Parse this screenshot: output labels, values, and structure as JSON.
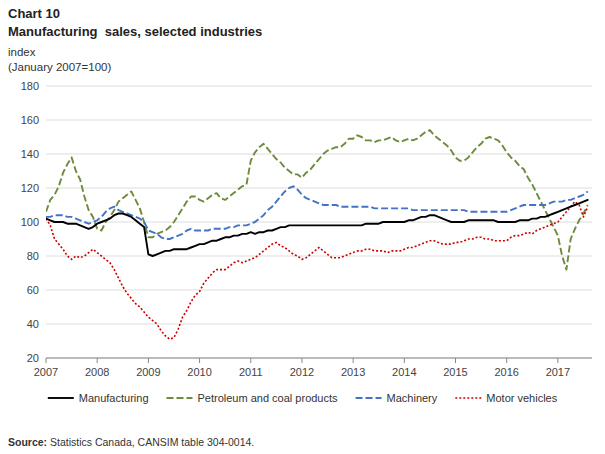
{
  "chart_data": {
    "type": "line",
    "title": "Chart 10",
    "subtitle": "Manufacturing  sales, selected industries",
    "y_label": [
      "index",
      "(January 2007=100)"
    ],
    "annotations": [
      "Source: Statistics Canada, CANSIM table 304-0014."
    ],
    "categories": [
      "2007",
      null,
      null,
      null,
      null,
      null,
      null,
      null,
      null,
      null,
      null,
      null,
      "2008",
      null,
      null,
      null,
      null,
      null,
      null,
      null,
      null,
      null,
      null,
      null,
      "2009",
      null,
      null,
      null,
      null,
      null,
      null,
      null,
      null,
      null,
      null,
      null,
      "2010",
      null,
      null,
      null,
      null,
      null,
      null,
      null,
      null,
      null,
      null,
      null,
      "2011",
      null,
      null,
      null,
      null,
      null,
      null,
      null,
      null,
      null,
      null,
      null,
      "2012",
      null,
      null,
      null,
      null,
      null,
      null,
      null,
      null,
      null,
      null,
      null,
      "2013",
      null,
      null,
      null,
      null,
      null,
      null,
      null,
      null,
      null,
      null,
      null,
      "2014",
      null,
      null,
      null,
      null,
      null,
      null,
      null,
      null,
      null,
      null,
      null,
      "2015",
      null,
      null,
      null,
      null,
      null,
      null,
      null,
      null,
      null,
      null,
      null,
      "2016",
      null,
      null,
      null,
      null,
      null,
      null,
      null,
      null,
      null,
      null,
      null,
      "2017",
      null,
      null,
      null,
      null,
      null,
      null,
      null
    ],
    "series": [
      {
        "name": "Manufacturing",
        "color": "#000000",
        "line_style": "solid",
        "values": [
          102,
          101,
          100,
          100,
          100,
          99,
          99,
          99,
          98,
          97,
          96,
          97,
          99,
          100,
          101,
          102,
          104,
          105,
          105,
          104,
          103,
          101,
          99,
          97,
          81,
          80,
          81,
          82,
          83,
          83,
          84,
          84,
          84,
          84,
          85,
          86,
          87,
          87,
          88,
          89,
          89,
          90,
          91,
          91,
          92,
          92,
          93,
          93,
          94,
          93,
          94,
          94,
          95,
          95,
          96,
          97,
          97,
          98,
          98,
          98,
          98,
          98,
          98,
          98,
          98,
          98,
          98,
          98,
          98,
          98,
          98,
          98,
          98,
          98,
          98,
          99,
          99,
          99,
          99,
          100,
          100,
          100,
          100,
          100,
          100,
          101,
          101,
          102,
          103,
          103,
          104,
          104,
          103,
          102,
          101,
          100,
          100,
          100,
          100,
          101,
          101,
          101,
          101,
          101,
          101,
          101,
          100,
          100,
          100,
          100,
          100,
          101,
          101,
          101,
          102,
          102,
          103,
          103,
          104,
          105,
          106,
          107,
          108,
          109,
          110,
          111,
          112,
          113
        ]
      },
      {
        "name": "Petroleum and coal products",
        "color": "#6e8b3d",
        "line_style": "dashed",
        "values": [
          106,
          113,
          116,
          121,
          129,
          134,
          138,
          130,
          125,
          115,
          107,
          103,
          96,
          95,
          100,
          103,
          107,
          112,
          114,
          116,
          118,
          113,
          108,
          100,
          91,
          91,
          93,
          94,
          95,
          97,
          100,
          104,
          108,
          112,
          115,
          115,
          113,
          112,
          114,
          116,
          117,
          114,
          113,
          115,
          117,
          119,
          121,
          122,
          136,
          141,
          144,
          146,
          143,
          140,
          137,
          135,
          132,
          130,
          128,
          128,
          126,
          129,
          131,
          134,
          137,
          140,
          142,
          143,
          144,
          144,
          146,
          149,
          149,
          151,
          150,
          148,
          148,
          147,
          148,
          148,
          149,
          150,
          148,
          147,
          148,
          149,
          148,
          149,
          151,
          153,
          154,
          151,
          149,
          147,
          145,
          142,
          138,
          136,
          136,
          138,
          141,
          144,
          146,
          149,
          150,
          149,
          148,
          145,
          141,
          138,
          136,
          133,
          131,
          126,
          122,
          117,
          112,
          107,
          102,
          97,
          92,
          80,
          72,
          90,
          96,
          101,
          105,
          110
        ]
      },
      {
        "name": "Machinery",
        "color": "#4472c4",
        "line_style": "dashed",
        "values": [
          103,
          103,
          104,
          104,
          104,
          103,
          103,
          102,
          101,
          100,
          99,
          100,
          101,
          103,
          106,
          108,
          109,
          107,
          106,
          105,
          104,
          103,
          102,
          100,
          95,
          94,
          93,
          91,
          90,
          90,
          91,
          92,
          93,
          95,
          96,
          95,
          95,
          95,
          95,
          96,
          96,
          96,
          96,
          97,
          97,
          98,
          98,
          98,
          99,
          100,
          102,
          104,
          107,
          109,
          112,
          115,
          118,
          120,
          121,
          119,
          116,
          114,
          113,
          112,
          111,
          110,
          110,
          110,
          110,
          109,
          109,
          109,
          109,
          109,
          109,
          109,
          109,
          108,
          108,
          108,
          108,
          108,
          108,
          108,
          108,
          108,
          107,
          107,
          107,
          107,
          107,
          107,
          107,
          107,
          107,
          107,
          107,
          107,
          107,
          106,
          106,
          106,
          106,
          106,
          106,
          106,
          106,
          106,
          106,
          107,
          108,
          109,
          110,
          110,
          110,
          110,
          110,
          110,
          111,
          112,
          112,
          112,
          113,
          113,
          114,
          115,
          116,
          118
        ]
      },
      {
        "name": "Motor vehicles",
        "color": "#cc0000",
        "line_style": "dotted",
        "values": [
          102,
          98,
          90,
          87,
          84,
          80,
          78,
          80,
          79,
          80,
          82,
          84,
          82,
          80,
          78,
          76,
          72,
          67,
          62,
          58,
          55,
          52,
          50,
          47,
          44,
          42,
          40,
          36,
          33,
          31,
          32,
          37,
          44,
          48,
          53,
          57,
          59,
          64,
          67,
          70,
          72,
          72,
          72,
          74,
          76,
          77,
          76,
          77,
          78,
          79,
          81,
          83,
          85,
          87,
          88,
          86,
          85,
          83,
          81,
          80,
          78,
          79,
          81,
          83,
          85,
          83,
          81,
          79,
          79,
          79,
          80,
          81,
          82,
          83,
          83,
          84,
          84,
          83,
          83,
          83,
          82,
          83,
          83,
          83,
          84,
          85,
          85,
          86,
          87,
          88,
          89,
          89,
          88,
          87,
          87,
          87,
          88,
          88,
          89,
          90,
          90,
          91,
          91,
          90,
          90,
          89,
          89,
          89,
          89,
          91,
          92,
          92,
          93,
          94,
          93,
          95,
          96,
          97,
          98,
          99,
          100,
          103,
          106,
          109,
          112,
          110,
          103,
          109
        ]
      }
    ],
    "ylim": [
      20,
      180
    ],
    "yticks": [
      20,
      40,
      60,
      80,
      100,
      120,
      140,
      160,
      180
    ],
    "grid": true,
    "legend": "bottom"
  }
}
